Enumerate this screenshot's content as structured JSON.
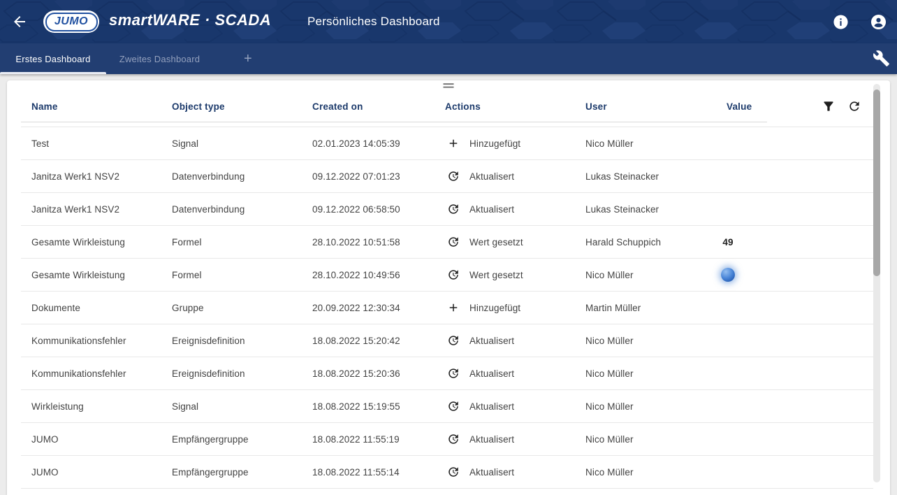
{
  "app_bar": {
    "brand": {
      "logo_text": "JUMO",
      "product": "smartWARE · SCADA"
    },
    "title": "Persönliches Dashboard"
  },
  "tab_bar": {
    "tabs": [
      {
        "label": "Erstes Dashboard",
        "active": true
      },
      {
        "label": "Zweites Dashboard",
        "active": false
      }
    ],
    "add_label": "+"
  },
  "icons": {
    "back": "arrow-left",
    "info": "info-circle",
    "account": "account-circle",
    "settings": "wrench",
    "add_tab": "plus",
    "filter": "funnel",
    "refresh": "circular-arrow",
    "drag_handle": "double-line-handle",
    "action_add": "plus",
    "action_update": "clock-circular-arrow",
    "value_indicator": "blue-sphere"
  },
  "colors": {
    "app_bar_bg": "#19376c",
    "tab_bar_bg": "#223e72",
    "header_text": "#1c3a6b",
    "value_ball_blue": "#4a86d8"
  },
  "table": {
    "columns": [
      "Name",
      "Object type",
      "Created on",
      "Actions",
      "User",
      "Value"
    ],
    "rows": [
      {
        "name": "Test",
        "object_type": "Signal",
        "created_on": "02.01.2023 14:05:39",
        "action_icon": "add-icon",
        "action": "Hinzugefügt",
        "user": "Nico Müller",
        "value": "",
        "value_indicator": ""
      },
      {
        "name": "Janitza Werk1 NSV2",
        "object_type": "Datenverbindung",
        "created_on": "09.12.2022 07:01:23",
        "action_icon": "update-icon",
        "action": "Aktualisert",
        "user": "Lukas Steinacker",
        "value": "",
        "value_indicator": ""
      },
      {
        "name": "Janitza Werk1 NSV2",
        "object_type": "Datenverbindung",
        "created_on": "09.12.2022 06:58:50",
        "action_icon": "update-icon",
        "action": "Aktualisert",
        "user": "Lukas Steinacker",
        "value": "",
        "value_indicator": ""
      },
      {
        "name": "Gesamte Wirkleistung",
        "object_type": "Formel",
        "created_on": "28.10.2022 10:51:58",
        "action_icon": "update-icon",
        "action": "Wert gesetzt",
        "user": "Harald Schuppich",
        "value": "49",
        "value_indicator": ""
      },
      {
        "name": "Gesamte Wirkleistung",
        "object_type": "Formel",
        "created_on": "28.10.2022 10:49:56",
        "action_icon": "update-icon",
        "action": "Wert gesetzt",
        "user": "Nico Müller",
        "value": "",
        "value_indicator": "blue-sphere"
      },
      {
        "name": "Dokumente",
        "object_type": "Gruppe",
        "created_on": "20.09.2022 12:30:34",
        "action_icon": "add-icon",
        "action": "Hinzugefügt",
        "user": "Martin Müller",
        "value": "",
        "value_indicator": ""
      },
      {
        "name": "Kommunikationsfehler",
        "object_type": "Ereignisdefinition",
        "created_on": "18.08.2022 15:20:42",
        "action_icon": "update-icon",
        "action": "Aktualisert",
        "user": "Nico Müller",
        "value": "",
        "value_indicator": ""
      },
      {
        "name": "Kommunikationsfehler",
        "object_type": "Ereignisdefinition",
        "created_on": "18.08.2022 15:20:36",
        "action_icon": "update-icon",
        "action": "Aktualisert",
        "user": "Nico Müller",
        "value": "",
        "value_indicator": ""
      },
      {
        "name": "Wirkleistung",
        "object_type": "Signal",
        "created_on": "18.08.2022 15:19:55",
        "action_icon": "update-icon",
        "action": "Aktualisert",
        "user": "Nico Müller",
        "value": "",
        "value_indicator": ""
      },
      {
        "name": "JUMO",
        "object_type": "Empfängergruppe",
        "created_on": "18.08.2022 11:55:19",
        "action_icon": "update-icon",
        "action": "Aktualisert",
        "user": "Nico Müller",
        "value": "",
        "value_indicator": ""
      },
      {
        "name": "JUMO",
        "object_type": "Empfängergruppe",
        "created_on": "18.08.2022 11:55:14",
        "action_icon": "update-icon",
        "action": "Aktualisert",
        "user": "Nico Müller",
        "value": "",
        "value_indicator": ""
      }
    ]
  }
}
